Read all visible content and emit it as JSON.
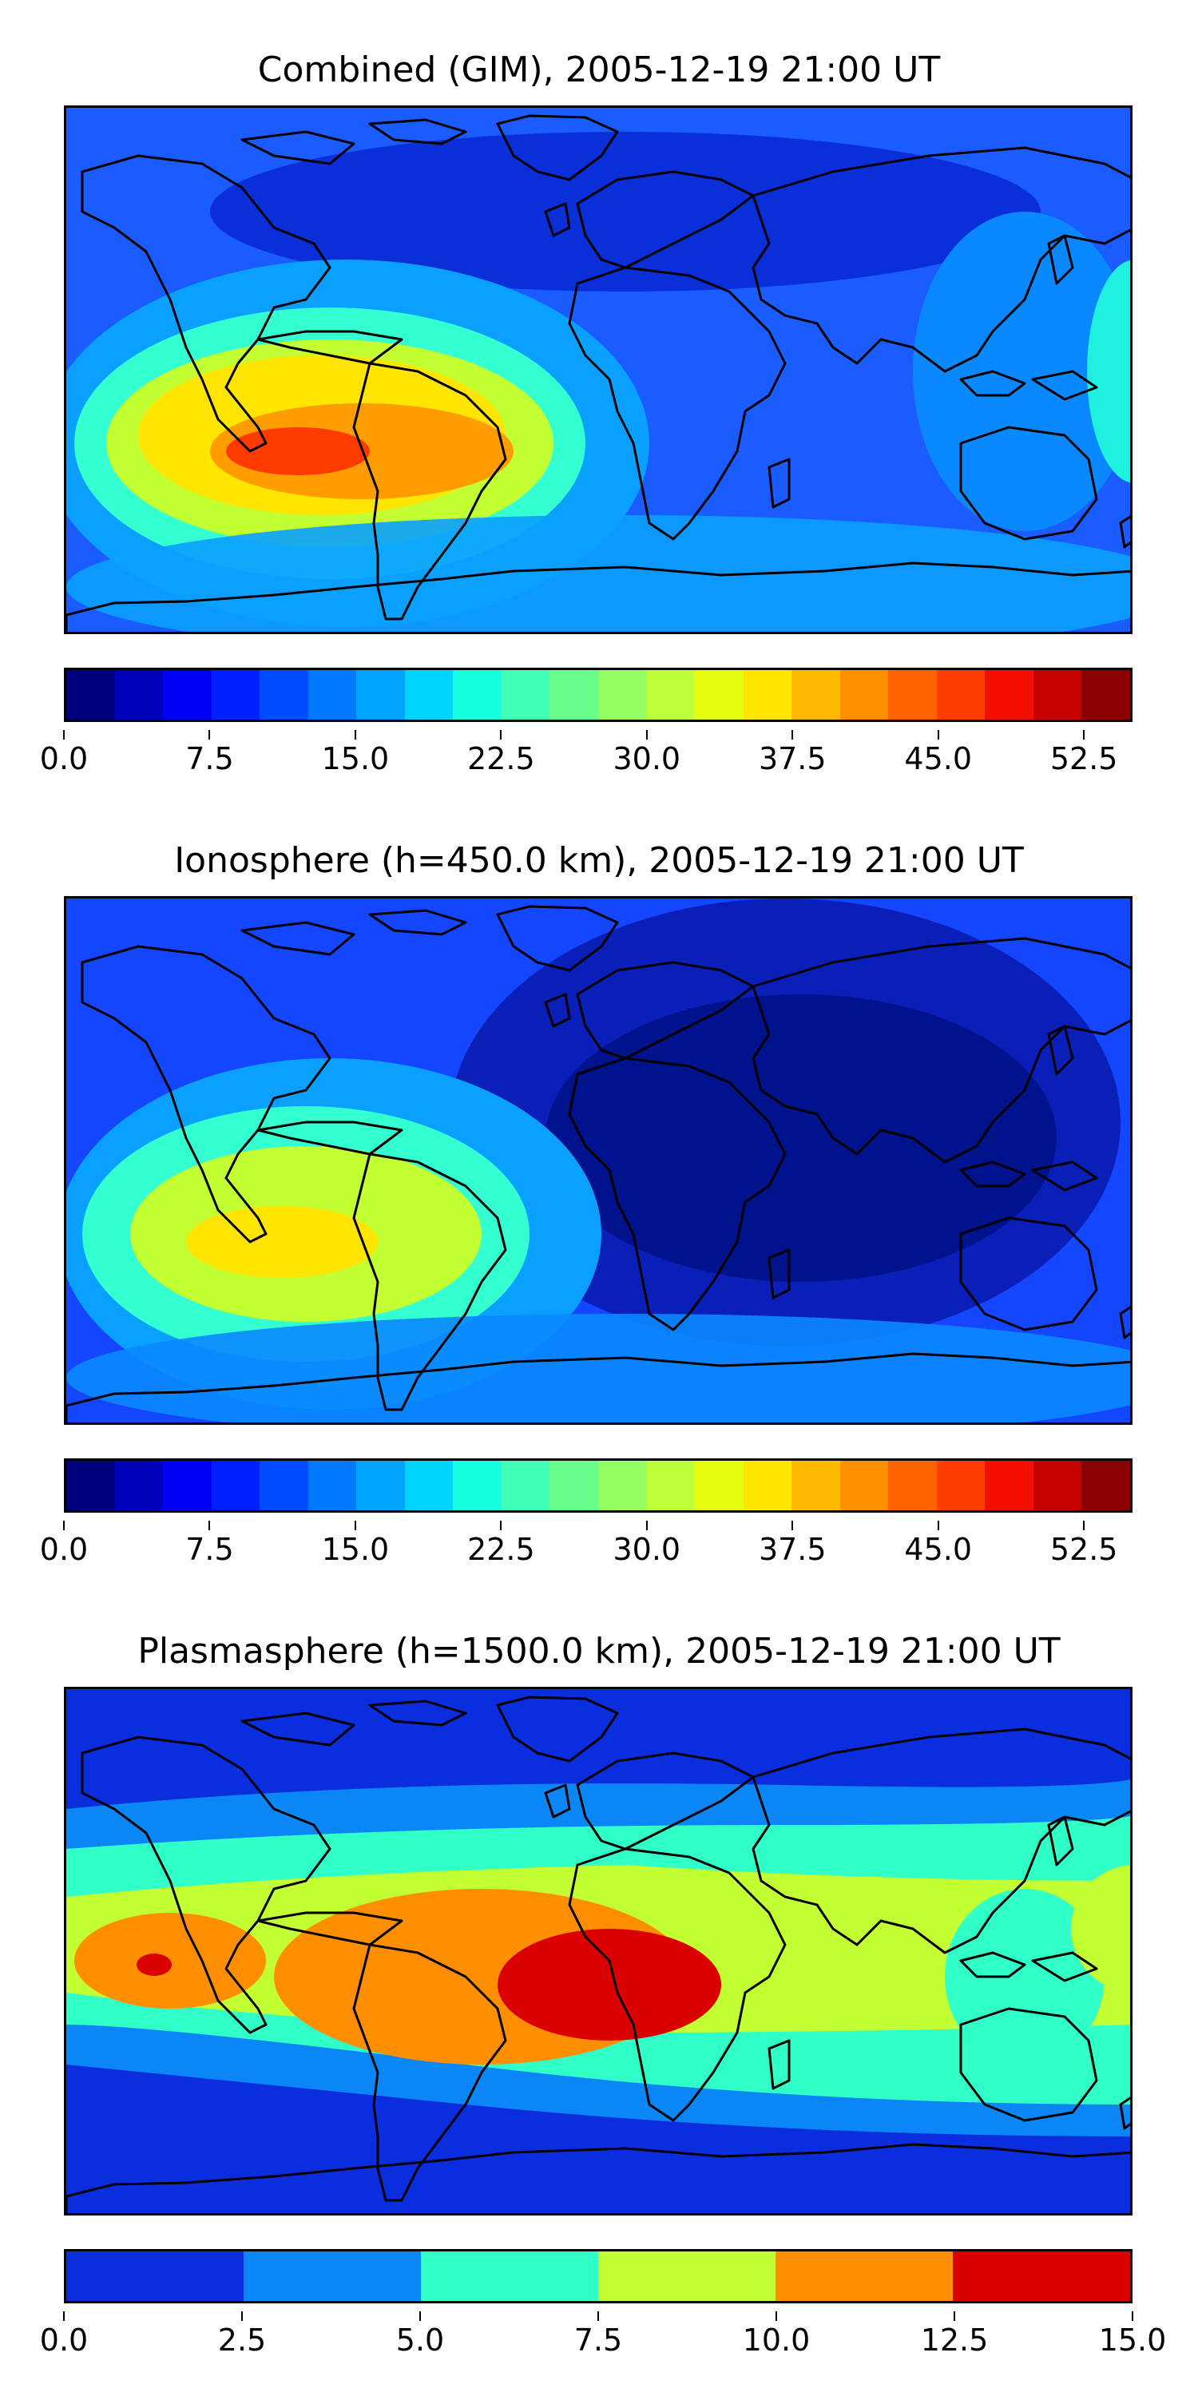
{
  "panels": [
    {
      "title": "Combined (GIM), 2005-12-19 21:00 UT",
      "colorbar": {
        "min": 0.0,
        "max": 55.0,
        "ticks": [
          "0.0",
          "7.5",
          "15.0",
          "22.5",
          "30.0",
          "37.5",
          "45.0",
          "52.5"
        ],
        "tick_values": [
          0.0,
          7.5,
          15.0,
          22.5,
          30.0,
          37.5,
          45.0,
          52.5
        ],
        "colors": [
          "#00007f",
          "#0000b9",
          "#0000f4",
          "#0020ff",
          "#004aff",
          "#0078ff",
          "#00a4ff",
          "#00d4ff",
          "#16ffe1",
          "#41ffb6",
          "#6aff8c",
          "#94ff63",
          "#bcff3a",
          "#e6ff11",
          "#ffe500",
          "#ffbb00",
          "#ff9100",
          "#ff6400",
          "#ff3b00",
          "#f40e00",
          "#c40000",
          "#8b0000"
        ]
      }
    },
    {
      "title": "Ionosphere  (h=450.0 km), 2005-12-19 21:00 UT",
      "colorbar": {
        "min": 0.0,
        "max": 55.0,
        "ticks": [
          "0.0",
          "7.5",
          "15.0",
          "22.5",
          "30.0",
          "37.5",
          "45.0",
          "52.5"
        ],
        "tick_values": [
          0.0,
          7.5,
          15.0,
          22.5,
          30.0,
          37.5,
          45.0,
          52.5
        ],
        "colors": [
          "#00007f",
          "#0000b9",
          "#0000f4",
          "#0020ff",
          "#004aff",
          "#0078ff",
          "#00a4ff",
          "#00d4ff",
          "#16ffe1",
          "#41ffb6",
          "#6aff8c",
          "#94ff63",
          "#bcff3a",
          "#e6ff11",
          "#ffe500",
          "#ffbb00",
          "#ff9100",
          "#ff6400",
          "#ff3b00",
          "#f40e00",
          "#c40000",
          "#8b0000"
        ]
      }
    },
    {
      "title": "Plasmasphere (h=1500.0 km), 2005-12-19 21:00 UT",
      "colorbar": {
        "min": 0.0,
        "max": 15.0,
        "ticks": [
          "0.0",
          "2.5",
          "5.0",
          "7.5",
          "10.0",
          "12.5",
          "15.0"
        ],
        "tick_values": [
          0.0,
          2.5,
          5.0,
          7.5,
          10.0,
          12.5,
          15.0
        ],
        "colors": [
          "#0a2ddd",
          "#0a86f6",
          "#30ffc8",
          "#c2ff33",
          "#ff8f00",
          "#db0000"
        ]
      }
    }
  ],
  "colors": {
    "combined_ocean_base": "#1a5cff",
    "ionosphere_base": "#1446ff",
    "plasmasphere_base": "#0a2ddd",
    "coastline": "#000000"
  }
}
